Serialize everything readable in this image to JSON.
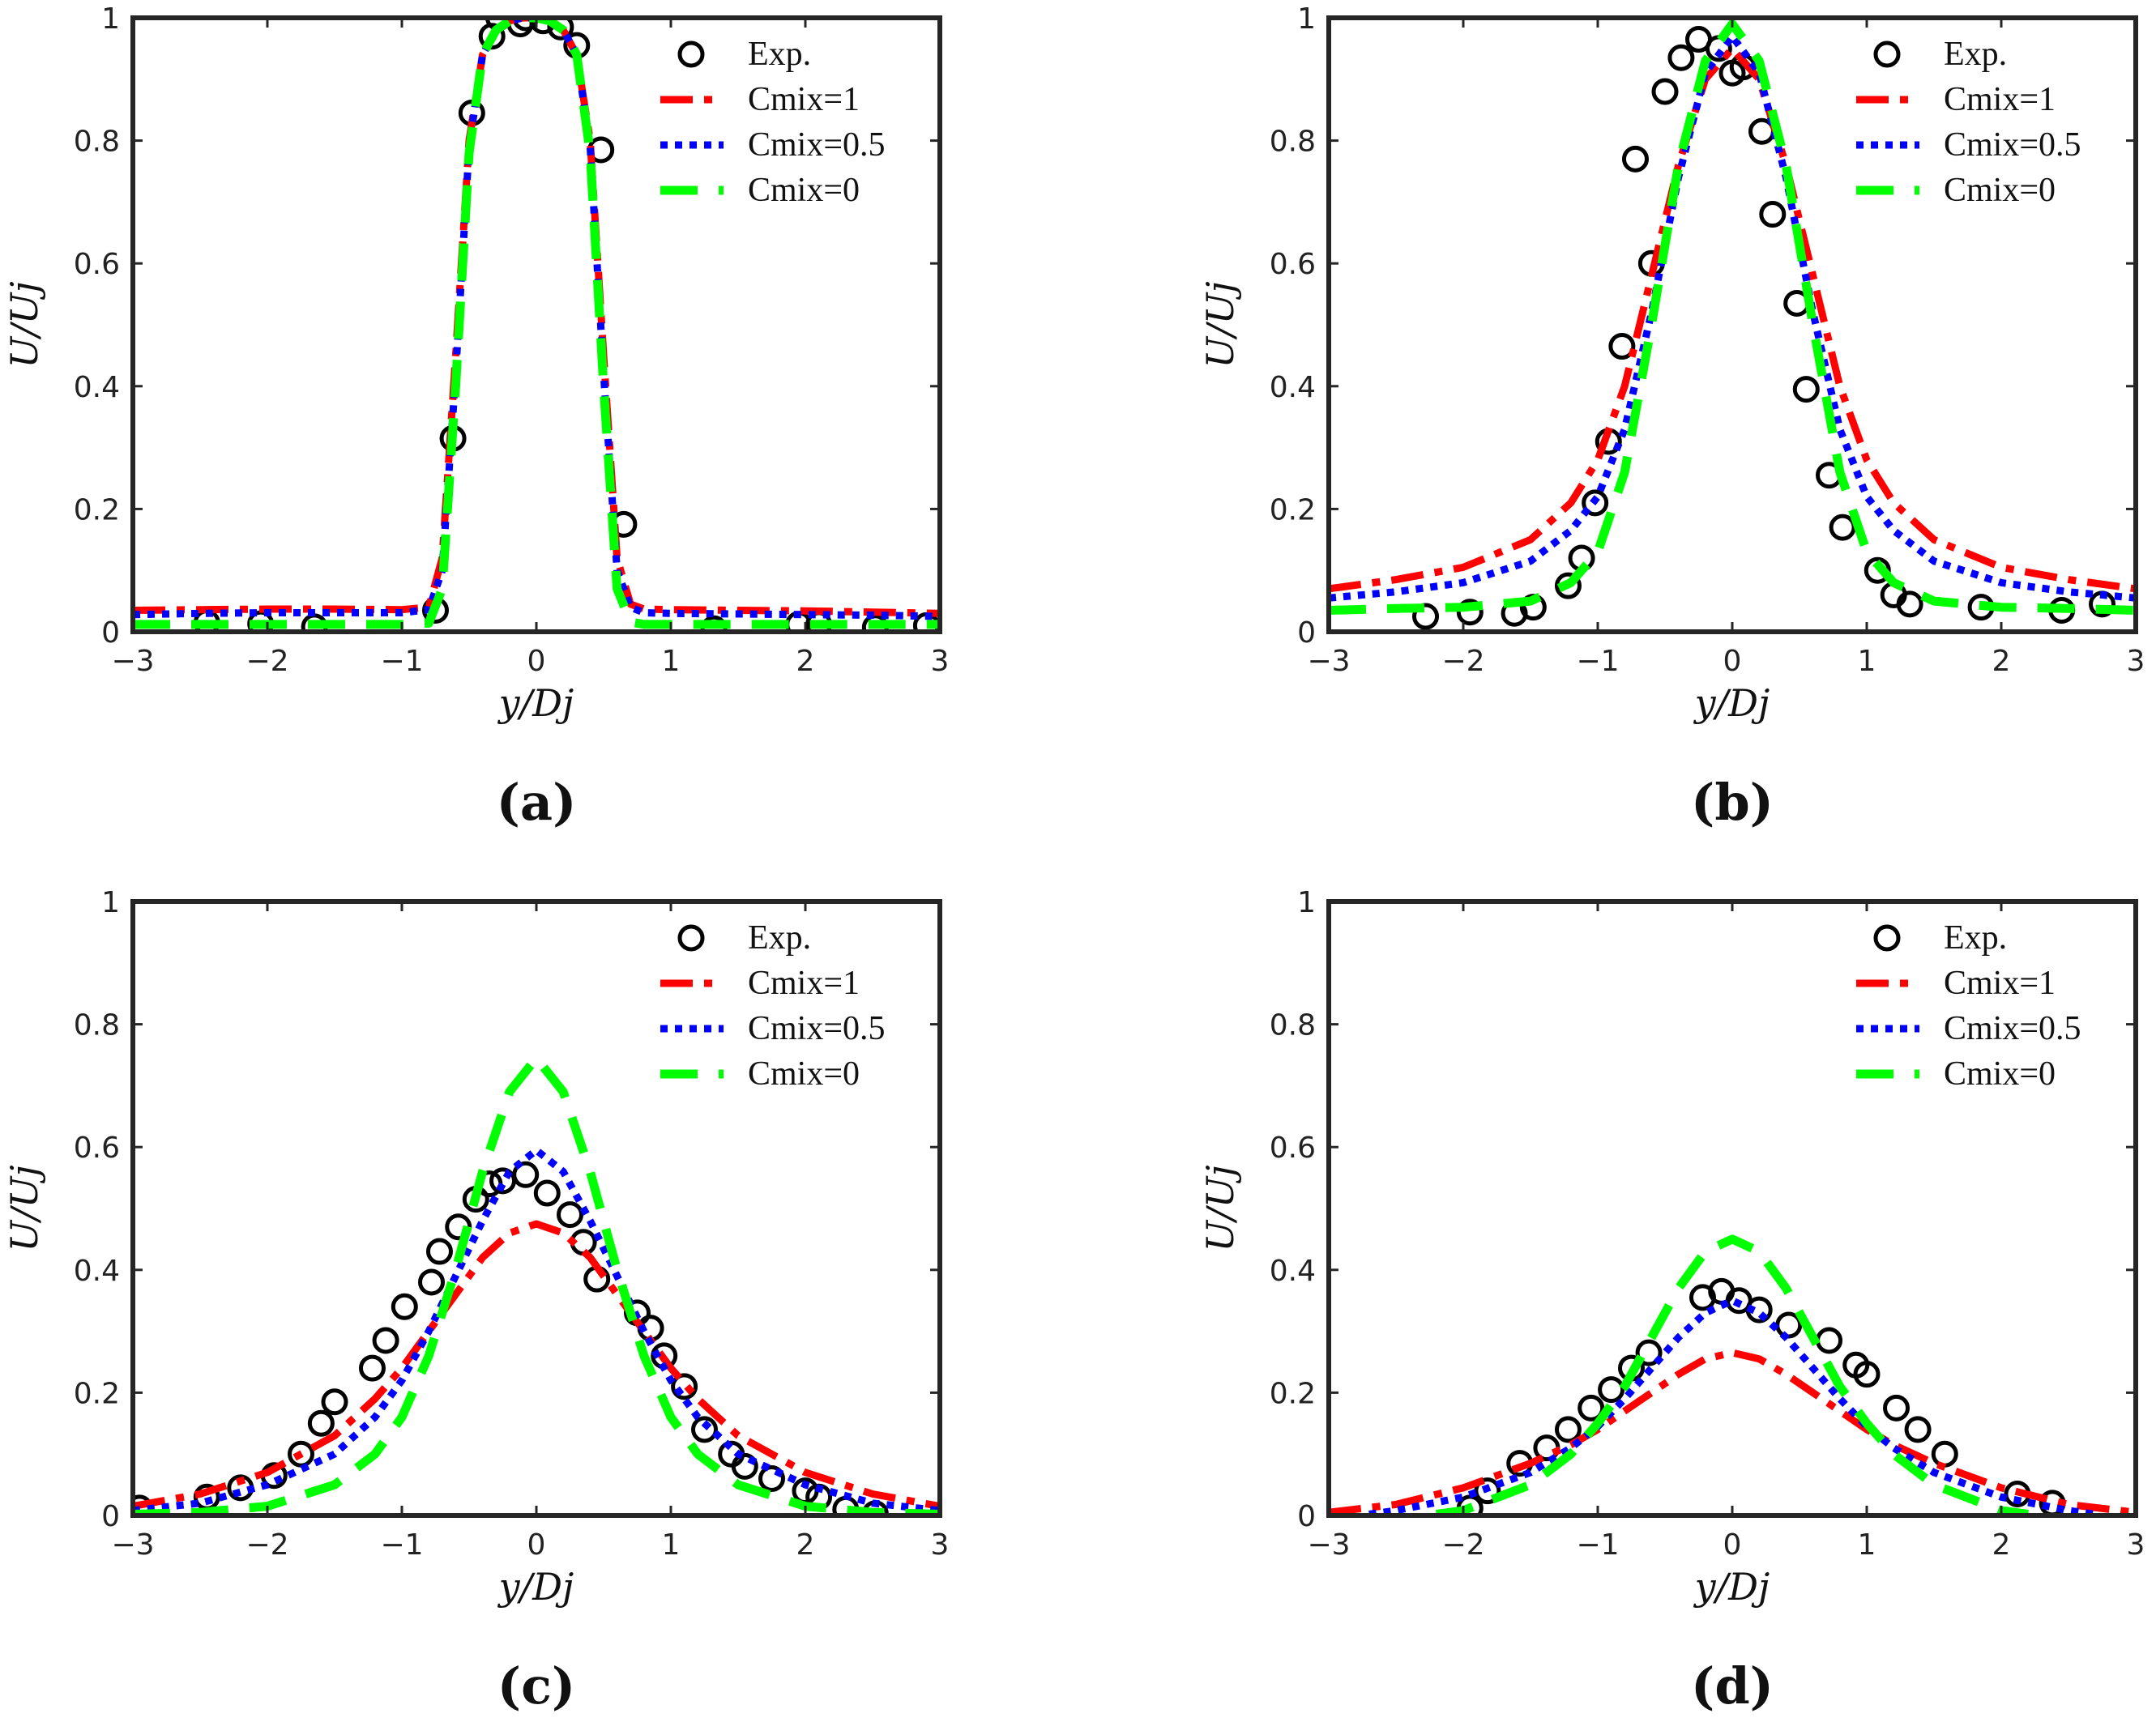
{
  "chart_data": [
    {
      "type": "line",
      "panel_label": "(a)",
      "xlabel": "y/Dj",
      "ylabel": "U/Uj",
      "xlim": [
        -3,
        3
      ],
      "ylim": [
        0,
        1
      ],
      "xticks": [
        "−3",
        "−2",
        "−1",
        "0",
        "1",
        "2",
        "3"
      ],
      "yticks": [
        "0",
        "0.2",
        "0.4",
        "0.6",
        "0.8",
        "1"
      ],
      "legend_position": "top-right",
      "series": [
        {
          "name": "Exp.",
          "kind": "markers",
          "color": "#000000",
          "x": [
            -2.45,
            -2.05,
            -1.65,
            -0.75,
            -0.62,
            -0.48,
            -0.33,
            -0.28,
            -0.12,
            -0.08,
            0.05,
            0.18,
            0.3,
            0.48,
            0.65,
            1.32,
            1.95,
            2.1,
            2.52,
            2.9
          ],
          "y": [
            0.015,
            0.013,
            0.008,
            0.035,
            0.315,
            0.845,
            0.97,
            1.0,
            0.99,
            1.0,
            0.995,
            0.985,
            0.955,
            0.785,
            0.175,
            0.005,
            0.012,
            0.012,
            0.007,
            0.01
          ]
        },
        {
          "name": "Cmix=1",
          "kind": "line",
          "color": "#ff0000",
          "style": "dashdot",
          "x": [
            -3,
            -2.5,
            -2,
            -1.5,
            -1,
            -0.8,
            -0.7,
            -0.6,
            -0.5,
            -0.4,
            -0.3,
            -0.2,
            -0.1,
            0,
            0.1,
            0.2,
            0.3,
            0.4,
            0.5,
            0.6,
            0.7,
            0.8,
            1,
            1.5,
            2,
            2.5,
            3
          ],
          "y": [
            0.035,
            0.036,
            0.037,
            0.037,
            0.036,
            0.04,
            0.12,
            0.45,
            0.8,
            0.94,
            0.98,
            0.995,
            1.0,
            1.0,
            0.995,
            0.98,
            0.94,
            0.8,
            0.45,
            0.12,
            0.045,
            0.037,
            0.036,
            0.035,
            0.034,
            0.032,
            0.03
          ]
        },
        {
          "name": "Cmix=0.5",
          "kind": "line",
          "color": "#0000ff",
          "style": "dotted",
          "x": [
            -3,
            -2.5,
            -2,
            -1.5,
            -1,
            -0.8,
            -0.7,
            -0.6,
            -0.5,
            -0.4,
            -0.3,
            -0.2,
            -0.1,
            0,
            0.1,
            0.2,
            0.3,
            0.4,
            0.5,
            0.6,
            0.7,
            0.8,
            1,
            1.5,
            2,
            2.5,
            3
          ],
          "y": [
            0.028,
            0.03,
            0.031,
            0.031,
            0.031,
            0.036,
            0.1,
            0.42,
            0.79,
            0.94,
            0.98,
            0.995,
            1.0,
            1.0,
            0.995,
            0.98,
            0.94,
            0.79,
            0.42,
            0.1,
            0.04,
            0.031,
            0.03,
            0.029,
            0.028,
            0.027,
            0.025
          ]
        },
        {
          "name": "Cmix=0",
          "kind": "line",
          "color": "#00ff00",
          "style": "dashed",
          "x": [
            -3,
            -2.5,
            -2,
            -1.5,
            -1,
            -0.8,
            -0.7,
            -0.6,
            -0.5,
            -0.4,
            -0.3,
            -0.2,
            -0.1,
            0,
            0.1,
            0.2,
            0.3,
            0.4,
            0.5,
            0.6,
            0.7,
            0.8,
            1,
            1.5,
            2,
            2.5,
            3
          ],
          "y": [
            0.012,
            0.012,
            0.012,
            0.012,
            0.012,
            0.014,
            0.07,
            0.4,
            0.78,
            0.94,
            0.98,
            0.995,
            1.0,
            1.0,
            0.995,
            0.98,
            0.94,
            0.78,
            0.4,
            0.07,
            0.016,
            0.012,
            0.012,
            0.012,
            0.012,
            0.012,
            0.012
          ]
        }
      ]
    },
    {
      "type": "line",
      "panel_label": "(b)",
      "xlabel": "y/Dj",
      "ylabel": "U/Uj",
      "xlim": [
        -3,
        3
      ],
      "ylim": [
        0,
        1
      ],
      "xticks": [
        "−3",
        "−2",
        "−1",
        "0",
        "1",
        "2",
        "3"
      ],
      "yticks": [
        "0",
        "0.2",
        "0.4",
        "0.6",
        "0.8",
        "1"
      ],
      "legend_position": "top-right",
      "series": [
        {
          "name": "Exp.",
          "kind": "markers",
          "color": "#000000",
          "x": [
            -2.28,
            -1.95,
            -1.62,
            -1.48,
            -1.22,
            -1.12,
            -1.02,
            -0.92,
            -0.82,
            -0.72,
            -0.6,
            -0.5,
            -0.38,
            -0.25,
            -0.1,
            0,
            0.08,
            0.22,
            0.3,
            0.48,
            0.55,
            0.72,
            0.82,
            1.08,
            1.2,
            1.32,
            1.85,
            2.45,
            2.75
          ],
          "y": [
            0.025,
            0.032,
            0.03,
            0.04,
            0.075,
            0.12,
            0.21,
            0.31,
            0.465,
            0.77,
            0.6,
            0.88,
            0.935,
            0.965,
            0.95,
            0.91,
            0.92,
            0.815,
            0.68,
            0.535,
            0.395,
            0.255,
            0.17,
            0.1,
            0.06,
            0.045,
            0.04,
            0.035,
            0.045
          ]
        },
        {
          "name": "Cmix=1",
          "kind": "line",
          "color": "#ff0000",
          "style": "dashdot",
          "x": [
            -3,
            -2.5,
            -2,
            -1.5,
            -1.2,
            -1,
            -0.8,
            -0.6,
            -0.4,
            -0.2,
            0,
            0.2,
            0.4,
            0.6,
            0.8,
            1,
            1.2,
            1.5,
            2,
            2.5,
            3
          ],
          "y": [
            0.07,
            0.085,
            0.105,
            0.15,
            0.21,
            0.28,
            0.4,
            0.58,
            0.76,
            0.9,
            0.95,
            0.9,
            0.76,
            0.58,
            0.4,
            0.28,
            0.21,
            0.15,
            0.105,
            0.085,
            0.07
          ]
        },
        {
          "name": "Cmix=0.5",
          "kind": "line",
          "color": "#0000ff",
          "style": "dotted",
          "x": [
            -3,
            -2.5,
            -2,
            -1.5,
            -1.2,
            -1,
            -0.8,
            -0.6,
            -0.4,
            -0.2,
            0,
            0.2,
            0.4,
            0.6,
            0.8,
            1,
            1.2,
            1.5,
            2,
            2.5,
            3
          ],
          "y": [
            0.055,
            0.065,
            0.08,
            0.115,
            0.165,
            0.22,
            0.33,
            0.52,
            0.74,
            0.91,
            0.97,
            0.91,
            0.74,
            0.52,
            0.33,
            0.22,
            0.165,
            0.115,
            0.08,
            0.065,
            0.055
          ]
        },
        {
          "name": "Cmix=0",
          "kind": "line",
          "color": "#00ff00",
          "style": "dashed",
          "x": [
            -3,
            -2.5,
            -2,
            -1.5,
            -1.2,
            -1,
            -0.8,
            -0.6,
            -0.4,
            -0.2,
            0,
            0.2,
            0.4,
            0.6,
            0.8,
            1,
            1.2,
            1.5,
            2,
            2.5,
            3
          ],
          "y": [
            0.035,
            0.038,
            0.04,
            0.05,
            0.08,
            0.13,
            0.26,
            0.5,
            0.76,
            0.93,
            0.99,
            0.93,
            0.76,
            0.5,
            0.26,
            0.13,
            0.08,
            0.05,
            0.04,
            0.038,
            0.035
          ]
        }
      ]
    },
    {
      "type": "line",
      "panel_label": "(c)",
      "xlabel": "y/Dj",
      "ylabel": "U/Uj",
      "xlim": [
        -3,
        3
      ],
      "ylim": [
        0,
        1
      ],
      "xticks": [
        "−3",
        "−2",
        "−1",
        "0",
        "1",
        "2",
        "3"
      ],
      "yticks": [
        "0",
        "0.2",
        "0.4",
        "0.6",
        "0.8",
        "1"
      ],
      "legend_position": "top-right",
      "series": [
        {
          "name": "Exp.",
          "kind": "markers",
          "color": "#000000",
          "x": [
            -2.95,
            -2.45,
            -2.2,
            -1.95,
            -1.75,
            -1.5,
            -1.6,
            -1.22,
            -1.12,
            -0.98,
            -0.78,
            -0.72,
            -0.58,
            -0.45,
            -0.35,
            -0.25,
            -0.08,
            0.08,
            0.25,
            0.35,
            0.45,
            0.75,
            0.85,
            0.95,
            1.1,
            1.25,
            1.45,
            1.55,
            1.75,
            2.0,
            2.1,
            2.3,
            2.52
          ],
          "y": [
            0.012,
            0.03,
            0.045,
            0.065,
            0.1,
            0.185,
            0.15,
            0.24,
            0.285,
            0.34,
            0.38,
            0.43,
            0.47,
            0.515,
            0.54,
            0.545,
            0.555,
            0.525,
            0.49,
            0.445,
            0.385,
            0.33,
            0.305,
            0.26,
            0.21,
            0.14,
            0.1,
            0.08,
            0.06,
            0.04,
            0.03,
            0.01,
            0.003
          ]
        },
        {
          "name": "Cmix=1",
          "kind": "line",
          "color": "#ff0000",
          "style": "dashdot",
          "x": [
            -3,
            -2.5,
            -2,
            -1.5,
            -1.2,
            -1,
            -0.8,
            -0.6,
            -0.4,
            -0.2,
            0,
            0.2,
            0.4,
            0.6,
            0.8,
            1,
            1.2,
            1.5,
            2,
            2.5,
            3
          ],
          "y": [
            0.015,
            0.035,
            0.07,
            0.13,
            0.19,
            0.24,
            0.3,
            0.36,
            0.42,
            0.46,
            0.475,
            0.46,
            0.42,
            0.36,
            0.3,
            0.24,
            0.19,
            0.13,
            0.07,
            0.035,
            0.015
          ]
        },
        {
          "name": "Cmix=0.5",
          "kind": "line",
          "color": "#0000ff",
          "style": "dotted",
          "x": [
            -3,
            -2.5,
            -2,
            -1.5,
            -1.2,
            -1,
            -0.8,
            -0.6,
            -0.4,
            -0.2,
            0,
            0.2,
            0.4,
            0.6,
            0.8,
            1,
            1.2,
            1.5,
            2,
            2.5,
            3
          ],
          "y": [
            0.008,
            0.02,
            0.05,
            0.1,
            0.16,
            0.22,
            0.3,
            0.39,
            0.48,
            0.56,
            0.595,
            0.56,
            0.48,
            0.39,
            0.3,
            0.22,
            0.16,
            0.1,
            0.05,
            0.02,
            0.008
          ]
        },
        {
          "name": "Cmix=0",
          "kind": "line",
          "color": "#00ff00",
          "style": "dashed",
          "x": [
            -3,
            -2.5,
            -2,
            -1.5,
            -1.2,
            -1,
            -0.8,
            -0.6,
            -0.4,
            -0.2,
            0,
            0.2,
            0.4,
            0.6,
            0.8,
            1,
            1.2,
            1.5,
            2,
            2.5,
            3
          ],
          "y": [
            0.002,
            0.005,
            0.015,
            0.05,
            0.1,
            0.16,
            0.26,
            0.4,
            0.56,
            0.69,
            0.745,
            0.69,
            0.56,
            0.4,
            0.26,
            0.16,
            0.1,
            0.05,
            0.015,
            0.005,
            0.002
          ]
        }
      ]
    },
    {
      "type": "line",
      "panel_label": "(d)",
      "xlabel": "y/Dj",
      "ylabel": "U/Uj",
      "xlim": [
        -3,
        3
      ],
      "ylim": [
        0,
        1
      ],
      "xticks": [
        "−3",
        "−2",
        "−1",
        "0",
        "1",
        "2",
        "3"
      ],
      "yticks": [
        "0",
        "0.2",
        "0.4",
        "0.6",
        "0.8",
        "1"
      ],
      "legend_position": "top-right",
      "series": [
        {
          "name": "Exp.",
          "kind": "markers",
          "color": "#000000",
          "x": [
            -1.95,
            -1.82,
            -1.58,
            -1.38,
            -1.22,
            -1.05,
            -0.9,
            -0.75,
            -0.62,
            -0.22,
            -0.08,
            0.05,
            0.2,
            0.42,
            0.72,
            0.92,
            1.0,
            1.22,
            1.38,
            1.58,
            2.12,
            2.38
          ],
          "y": [
            0.012,
            0.04,
            0.085,
            0.11,
            0.14,
            0.175,
            0.205,
            0.24,
            0.265,
            0.355,
            0.365,
            0.35,
            0.335,
            0.31,
            0.285,
            0.245,
            0.23,
            0.175,
            0.14,
            0.1,
            0.035,
            0.02
          ]
        },
        {
          "name": "Cmix=1",
          "kind": "line",
          "color": "#ff0000",
          "style": "dashdot",
          "x": [
            -3,
            -2.5,
            -2,
            -1.5,
            -1.2,
            -1,
            -0.8,
            -0.6,
            -0.4,
            -0.2,
            0,
            0.2,
            0.4,
            0.6,
            0.8,
            1,
            1.2,
            1.5,
            2,
            2.5,
            3
          ],
          "y": [
            0.005,
            0.018,
            0.045,
            0.085,
            0.115,
            0.14,
            0.17,
            0.2,
            0.23,
            0.255,
            0.265,
            0.255,
            0.23,
            0.2,
            0.17,
            0.14,
            0.115,
            0.085,
            0.045,
            0.018,
            0.005
          ]
        },
        {
          "name": "Cmix=0.5",
          "kind": "line",
          "color": "#0000ff",
          "style": "dotted",
          "x": [
            -2.7,
            -2.5,
            -2,
            -1.5,
            -1.2,
            -1,
            -0.8,
            -0.6,
            -0.4,
            -0.2,
            0,
            0.2,
            0.4,
            0.6,
            0.8,
            1,
            1.2,
            1.5,
            2,
            2.5,
            2.7
          ],
          "y": [
            0.002,
            0.008,
            0.03,
            0.07,
            0.11,
            0.145,
            0.19,
            0.24,
            0.29,
            0.33,
            0.35,
            0.33,
            0.29,
            0.24,
            0.19,
            0.145,
            0.11,
            0.07,
            0.03,
            0.008,
            0.002
          ]
        },
        {
          "name": "Cmix=0",
          "kind": "line",
          "color": "#00ff00",
          "style": "dashed",
          "x": [
            -2.2,
            -2,
            -1.5,
            -1.2,
            -1,
            -0.8,
            -0.6,
            -0.4,
            -0.2,
            0,
            0.2,
            0.4,
            0.6,
            0.8,
            1,
            1.2,
            1.5,
            2,
            2.2
          ],
          "y": [
            0.002,
            0.008,
            0.05,
            0.1,
            0.15,
            0.21,
            0.29,
            0.37,
            0.43,
            0.45,
            0.43,
            0.37,
            0.29,
            0.21,
            0.15,
            0.1,
            0.05,
            0.008,
            0.002
          ]
        }
      ]
    }
  ]
}
